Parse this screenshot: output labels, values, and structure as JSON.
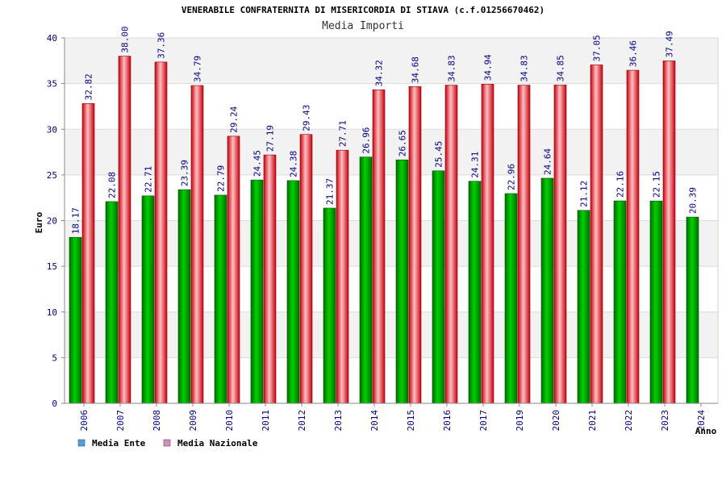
{
  "colors": {
    "ente_dark": "#006f00",
    "ente_light": "#00d000",
    "naz_dark": "#c8000c",
    "naz_light": "#ffbfc3",
    "axis_text": "#00008b",
    "band": "#f2f2f2",
    "legend_ente": "#4f9fe8",
    "legend_naz": "#d98cc0"
  },
  "chart_data": {
    "type": "bar",
    "title": "VENERABILE CONFRATERNITA DI MISERICORDIA DI STIAVA (c.f.01256670462)",
    "subtitle": "Media Importi",
    "xlabel": "Anno",
    "ylabel": "Euro",
    "ylim": [
      0,
      40
    ],
    "yticks": [
      "0",
      "5",
      "10",
      "15",
      "20",
      "25",
      "30",
      "35",
      "40"
    ],
    "grid": true,
    "legend_position": "bottom-left",
    "categories": [
      "2006",
      "2007",
      "2008",
      "2009",
      "2010",
      "2011",
      "2012",
      "2013",
      "2014",
      "2015",
      "2016",
      "2017",
      "2019",
      "2020",
      "2021",
      "2022",
      "2023",
      "2024"
    ],
    "series": [
      {
        "name": "Media Ente",
        "values": [
          18.17,
          22.08,
          22.71,
          23.39,
          22.79,
          24.45,
          24.38,
          21.37,
          26.96,
          26.65,
          25.45,
          24.31,
          22.96,
          24.64,
          21.12,
          22.16,
          22.15,
          20.39
        ],
        "labels": [
          "18.17",
          "22.08",
          "22.71",
          "23.39",
          "22.79",
          "24.45",
          "24.38",
          "21.37",
          "26.96",
          "26.65",
          "25.45",
          "24.31",
          "22.96",
          "24.64",
          "21.12",
          "22.16",
          "22.15",
          "20.39"
        ]
      },
      {
        "name": "Media Nazionale",
        "values": [
          32.82,
          38.0,
          37.36,
          34.79,
          29.24,
          27.19,
          29.43,
          27.71,
          34.32,
          34.68,
          34.83,
          34.94,
          34.83,
          34.85,
          37.05,
          36.46,
          37.49,
          null
        ],
        "labels": [
          "32.82",
          "38.00",
          "37.36",
          "34.79",
          "29.24",
          "27.19",
          "29.43",
          "27.71",
          "34.32",
          "34.68",
          "34.83",
          "34.94",
          "34.83",
          "34.85",
          "37.05",
          "36.46",
          "37.49",
          ""
        ]
      }
    ]
  }
}
